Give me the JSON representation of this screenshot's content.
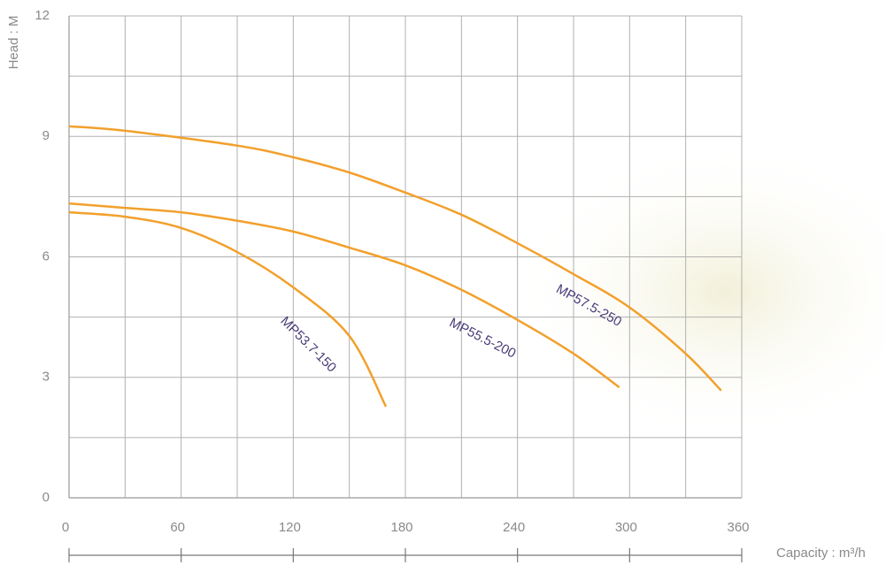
{
  "chart_data": {
    "type": "line",
    "ylabel": "Head : M",
    "xlabel": "Capacity : m³/h",
    "xlim": [
      0,
      360
    ],
    "ylim": [
      0,
      12
    ],
    "xticks": [
      0,
      60,
      120,
      180,
      240,
      300,
      360
    ],
    "yticks": [
      0,
      3,
      6,
      9,
      12
    ],
    "xgrid": [
      0,
      30,
      60,
      90,
      120,
      150,
      180,
      210,
      240,
      270,
      300,
      330,
      360
    ],
    "ygrid": [
      0,
      1.5,
      3,
      4.5,
      6,
      7.5,
      9,
      10.5,
      12
    ],
    "grid": true,
    "series": [
      {
        "name": "MP57.5-250",
        "color": "#f2a02c",
        "x": [
          0,
          30,
          90,
          120,
          150,
          180,
          210,
          240,
          270,
          300,
          330,
          349
        ],
        "values": [
          9.25,
          9.14,
          8.77,
          8.48,
          8.1,
          7.6,
          7.05,
          6.34,
          5.57,
          4.74,
          3.59,
          2.67
        ]
      },
      {
        "name": "MP55.5-200",
        "color": "#f2a02c",
        "x": [
          0,
          30,
          60,
          90,
          120,
          150,
          180,
          210,
          240,
          270,
          294.5
        ],
        "values": [
          7.33,
          7.22,
          7.11,
          6.9,
          6.63,
          6.23,
          5.79,
          5.18,
          4.43,
          3.59,
          2.75
        ]
      },
      {
        "name": "MP53.7-150",
        "color": "#f2a02c",
        "x": [
          0,
          30,
          60,
          90,
          120,
          150,
          169.6
        ],
        "values": [
          7.11,
          7.0,
          6.72,
          6.12,
          5.24,
          4.03,
          2.27
        ]
      }
    ]
  }
}
